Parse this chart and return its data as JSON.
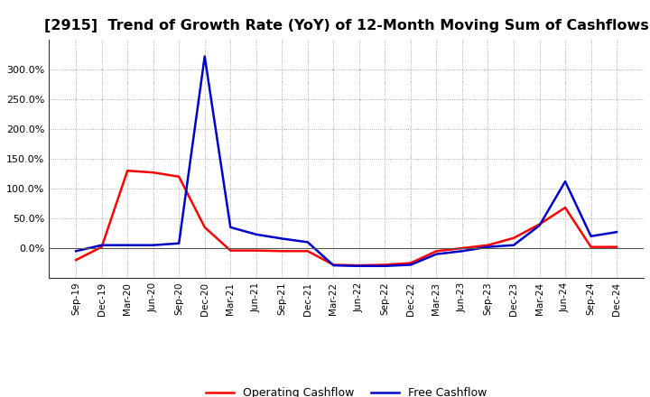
{
  "title": "[2915]  Trend of Growth Rate (YoY) of 12-Month Moving Sum of Cashflows",
  "x_labels": [
    "Sep-19",
    "Dec-19",
    "Mar-20",
    "Jun-20",
    "Sep-20",
    "Dec-20",
    "Mar-21",
    "Jun-21",
    "Sep-21",
    "Dec-21",
    "Mar-22",
    "Jun-22",
    "Sep-22",
    "Dec-22",
    "Mar-23",
    "Jun-23",
    "Sep-23",
    "Dec-23",
    "Mar-24",
    "Jun-24",
    "Sep-24",
    "Dec-24"
  ],
  "operating_cashflow": [
    -0.2,
    0.02,
    1.3,
    1.27,
    1.2,
    0.35,
    -0.04,
    -0.04,
    -0.05,
    -0.05,
    -0.28,
    -0.29,
    -0.28,
    -0.25,
    -0.05,
    0.0,
    0.05,
    0.17,
    0.4,
    0.68,
    0.02,
    0.02
  ],
  "free_cashflow": [
    -0.05,
    0.05,
    0.05,
    0.05,
    0.08,
    3.22,
    0.35,
    0.23,
    0.16,
    0.1,
    -0.29,
    -0.3,
    -0.3,
    -0.28,
    -0.1,
    -0.05,
    0.02,
    0.05,
    0.38,
    1.12,
    0.2,
    0.27
  ],
  "ylim_min": -0.5,
  "ylim_max": 3.5,
  "yticks": [
    0.0,
    0.5,
    1.0,
    1.5,
    2.0,
    2.5,
    3.0
  ],
  "ytick_labels": [
    "0.0%",
    "50.0%",
    "100.0%",
    "150.0%",
    "200.0%",
    "250.0%",
    "300.0%"
  ],
  "operating_color": "#ff0000",
  "free_color": "#0000cc",
  "background_color": "#ffffff",
  "grid_color": "#999999",
  "title_fontsize": 11.5,
  "legend_labels": [
    "Operating Cashflow",
    "Free Cashflow"
  ]
}
